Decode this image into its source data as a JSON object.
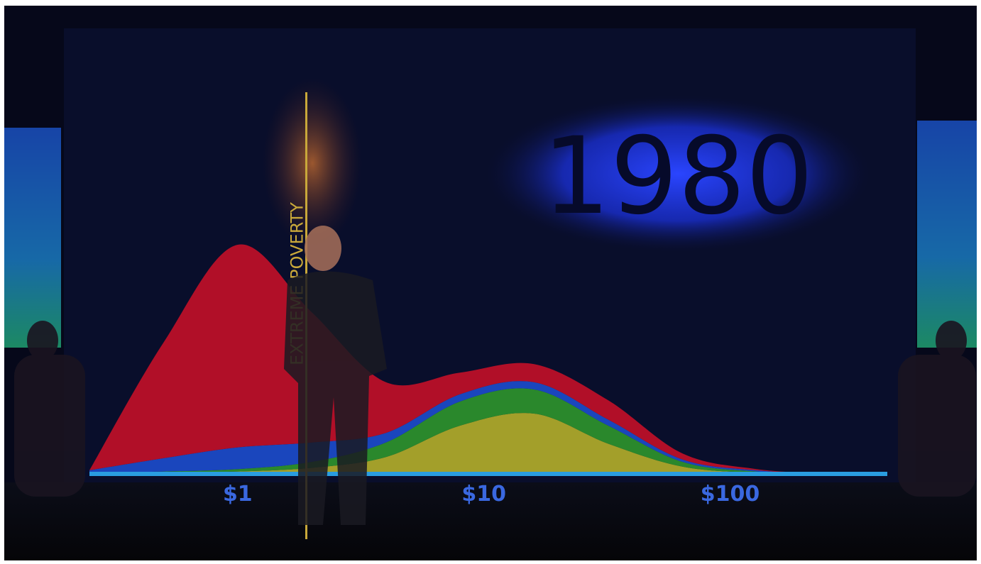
{
  "chart_data": {
    "type": "area",
    "title": "1980",
    "x": [
      0.25,
      0.5,
      1,
      2,
      4,
      8,
      16,
      32,
      64,
      128,
      256
    ],
    "series": [
      {
        "color": "#b8b42a",
        "values": [
          0,
          0.5,
          1,
          2.5,
          7,
          20,
          25,
          12.5,
          3,
          0.5,
          0
        ]
      },
      {
        "color": "#2f9a2c",
        "values": [
          0.5,
          0.5,
          1,
          2.5,
          6,
          10,
          10,
          7.5,
          2,
          0.5,
          0
        ]
      },
      {
        "color": "#1c4fd2",
        "values": [
          1,
          5.5,
          9,
          8,
          4,
          3,
          3,
          2.5,
          1,
          0.5,
          0
        ]
      },
      {
        "color": "#c81028",
        "values": [
          0,
          48,
          84,
          54,
          21,
          9,
          7.5,
          8,
          2.5,
          0.5,
          0
        ]
      }
    ],
    "stacked": true,
    "xscale": "log",
    "xlim": [
      0.25,
      435
    ],
    "xticks": [
      {
        "value": 1,
        "label": "$1"
      },
      {
        "value": 10,
        "label": "$10"
      },
      {
        "value": 100,
        "label": "$100"
      }
    ],
    "ylim": [
      0,
      100
    ],
    "annotation": {
      "x": 1.9,
      "label": "EXTREME POVERTY",
      "color": "#c9a83a"
    }
  }
}
